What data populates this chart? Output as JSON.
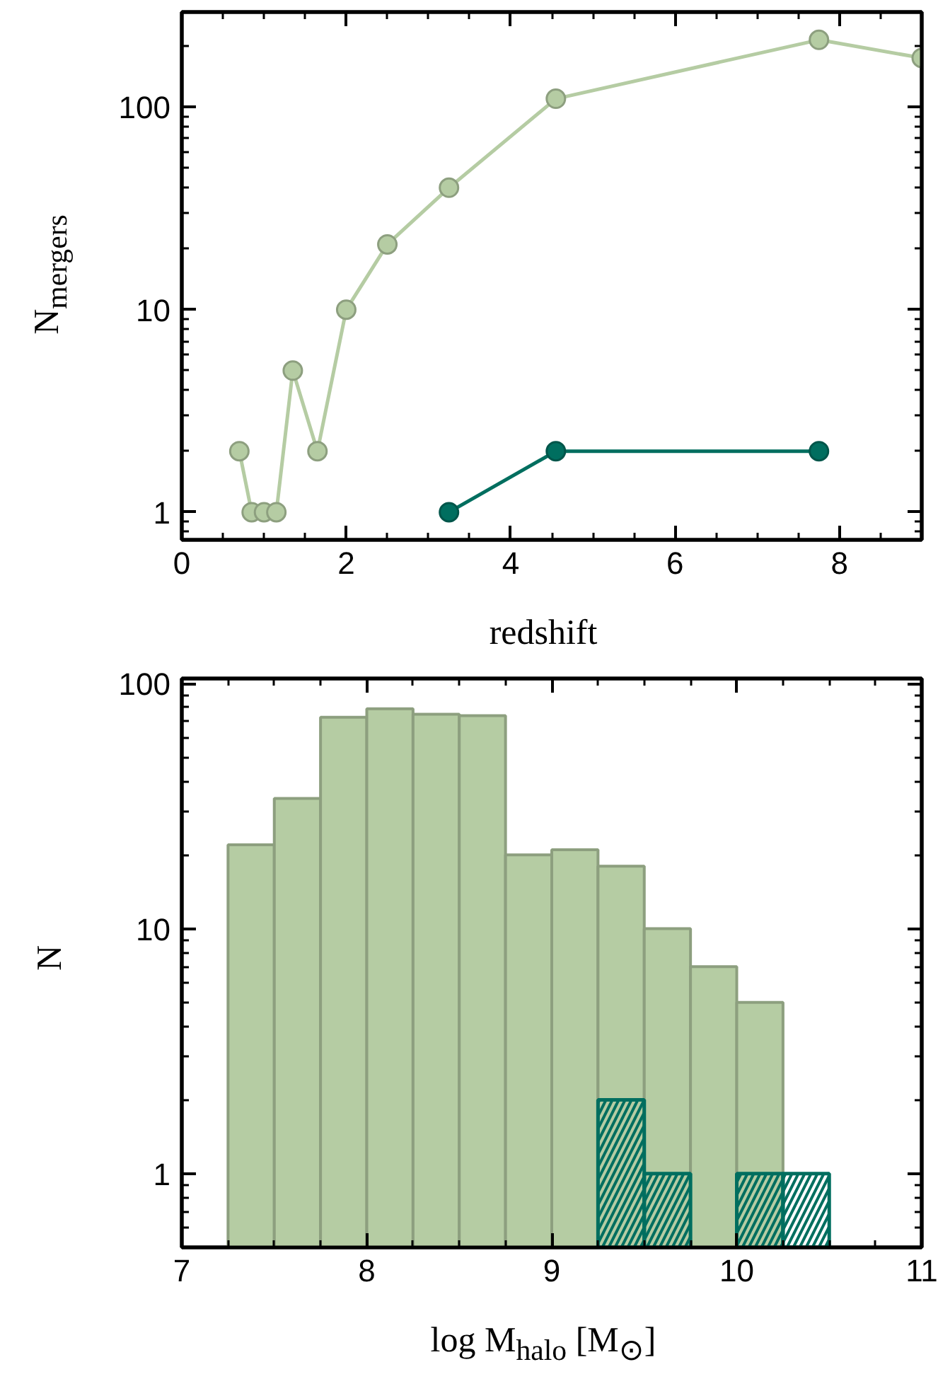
{
  "chart_data": [
    {
      "type": "line",
      "xlabel": "redshift",
      "ylabel": "N$_{mergers}$",
      "xlim": [
        0,
        9
      ],
      "ylim": [
        0.73,
        295
      ],
      "xticks": [
        0,
        2,
        4,
        6,
        8
      ],
      "yticks": [
        1,
        10,
        100
      ],
      "log": "y",
      "marker": "circle",
      "grid": false,
      "series": [
        {
          "color": "#b5cca3",
          "x": [
            0.7,
            0.85,
            1.0,
            1.15,
            1.35,
            1.65,
            2.0,
            2.5,
            3.25,
            4.55,
            7.75,
            9.0
          ],
          "values": [
            2,
            1,
            1,
            1,
            5,
            2,
            10,
            21,
            40,
            110,
            215,
            175
          ]
        },
        {
          "color": "#006e5f",
          "x": [
            3.25,
            4.55,
            7.75
          ],
          "values": [
            1,
            2,
            2
          ]
        }
      ]
    },
    {
      "type": "histogram",
      "xlabel": "log M$_{halo}$ [M$_{⊙}$]",
      "ylabel": "N",
      "xlim": [
        7,
        11
      ],
      "ylim": [
        0.5,
        105
      ],
      "xticks": [
        7,
        8,
        9,
        10,
        11
      ],
      "yticks": [
        1,
        10,
        100
      ],
      "log": "y",
      "grid": false,
      "bins": [
        7.25,
        7.5,
        7.75,
        8.0,
        8.25,
        8.5,
        8.75,
        9.0,
        9.25,
        9.5,
        9.75,
        10.0,
        10.25,
        10.5
      ],
      "series": [
        {
          "color": "#b5cca3",
          "values": [
            22,
            34,
            73,
            79,
            75,
            74,
            20,
            21,
            18,
            10,
            7,
            5,
            null
          ]
        },
        {
          "color": "#006e5f",
          "values": [
            null,
            null,
            null,
            null,
            null,
            null,
            null,
            null,
            2,
            1,
            null,
            1,
            1
          ]
        }
      ]
    }
  ]
}
